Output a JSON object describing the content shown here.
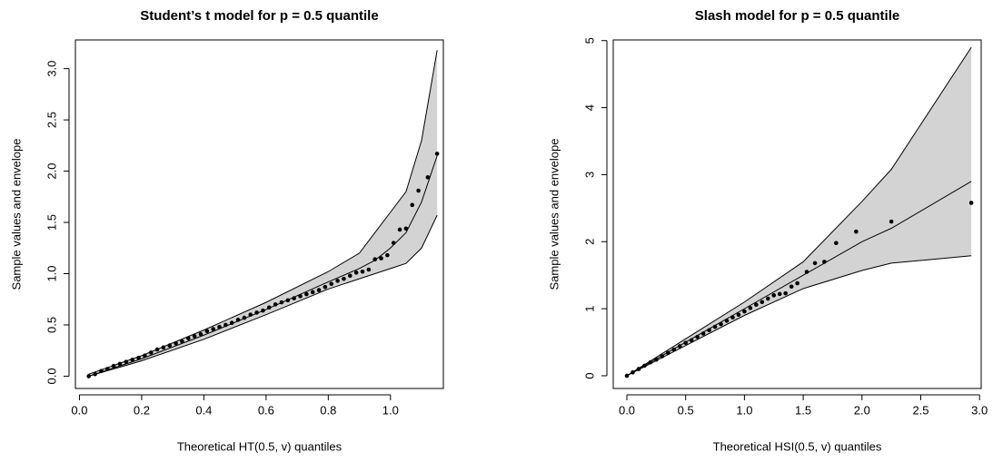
{
  "chart_data": [
    {
      "type": "qq",
      "title": "Student’s t model for p = 0.5 quantile",
      "xlabel": "Theoretical HT(0.5, v) quantiles",
      "ylabel": "Sample values and envelope",
      "xlim": [
        -0.013,
        1.17
      ],
      "ylim": [
        -0.12,
        3.28
      ],
      "xticks": [
        {
          "value": 0,
          "label": "0.0"
        },
        0.2,
        0.4,
        0.6,
        0.8,
        {
          "value": 1,
          "label": "1.0"
        }
      ],
      "yticks": [
        {
          "value": 0,
          "label": "0.0"
        },
        0.5,
        {
          "value": 1,
          "label": "1.0"
        },
        1.5,
        {
          "value": 2,
          "label": "2.0"
        },
        2.5,
        {
          "value": 3,
          "label": "3.0"
        }
      ],
      "band_color": "#d3d3d3",
      "points": {
        "x": [
          0.03,
          0.05,
          0.07,
          0.09,
          0.11,
          0.13,
          0.15,
          0.17,
          0.19,
          0.21,
          0.23,
          0.25,
          0.27,
          0.29,
          0.31,
          0.33,
          0.35,
          0.37,
          0.39,
          0.41,
          0.43,
          0.45,
          0.47,
          0.49,
          0.51,
          0.53,
          0.55,
          0.57,
          0.59,
          0.61,
          0.63,
          0.65,
          0.67,
          0.69,
          0.71,
          0.73,
          0.75,
          0.77,
          0.79,
          0.81,
          0.83,
          0.85,
          0.87,
          0.89,
          0.91,
          0.93,
          0.95,
          0.97,
          0.99,
          1.01,
          1.03,
          1.05,
          1.07,
          1.09,
          1.12,
          1.15
        ],
        "y": [
          0.0,
          0.02,
          0.05,
          0.07,
          0.1,
          0.12,
          0.14,
          0.16,
          0.18,
          0.2,
          0.23,
          0.26,
          0.28,
          0.3,
          0.32,
          0.34,
          0.37,
          0.39,
          0.41,
          0.44,
          0.46,
          0.48,
          0.5,
          0.52,
          0.55,
          0.57,
          0.6,
          0.62,
          0.64,
          0.67,
          0.7,
          0.72,
          0.74,
          0.76,
          0.78,
          0.8,
          0.82,
          0.84,
          0.87,
          0.9,
          0.93,
          0.95,
          0.98,
          1.01,
          1.02,
          1.04,
          1.14,
          1.15,
          1.18,
          1.3,
          1.43,
          1.44,
          1.67,
          1.81,
          1.94,
          2.17
        ]
      },
      "envelope": {
        "x": [
          0.03,
          0.2,
          0.4,
          0.6,
          0.8,
          0.9,
          0.95,
          1.0,
          1.05,
          1.1,
          1.15
        ],
        "lower": [
          0,
          0.15,
          0.36,
          0.6,
          0.85,
          0.95,
          1.0,
          1.05,
          1.1,
          1.25,
          1.57
        ],
        "middle": [
          0,
          0.17,
          0.4,
          0.65,
          0.92,
          1.05,
          1.13,
          1.25,
          1.4,
          1.7,
          2.15
        ],
        "upper": [
          0.02,
          0.2,
          0.45,
          0.72,
          1.02,
          1.2,
          1.4,
          1.6,
          1.8,
          2.3,
          3.18
        ]
      }
    },
    {
      "type": "qq",
      "title": "Slash model for p = 0.5 quantile",
      "xlabel": "Theoretical HSI(0.5, v) quantiles",
      "ylabel": "Sample values and envelope",
      "xlim": [
        -0.116,
        3.014
      ],
      "ylim": [
        -0.19,
        5.01
      ],
      "xticks": [
        {
          "value": 0,
          "label": "0.0"
        },
        0.5,
        {
          "value": 1,
          "label": "1.0"
        },
        1.5,
        {
          "value": 2,
          "label": "2.0"
        },
        2.5,
        {
          "value": 3,
          "label": "3.0"
        }
      ],
      "yticks": [
        0,
        1,
        2,
        3,
        4,
        5
      ],
      "band_color": "#d3d3d3",
      "points": {
        "x": [
          0,
          0.05,
          0.1,
          0.15,
          0.2,
          0.25,
          0.3,
          0.35,
          0.4,
          0.45,
          0.5,
          0.55,
          0.6,
          0.65,
          0.7,
          0.75,
          0.8,
          0.85,
          0.9,
          0.95,
          1.0,
          1.05,
          1.1,
          1.15,
          1.2,
          1.25,
          1.3,
          1.35,
          1.4,
          1.45,
          1.53,
          1.6,
          1.68,
          1.78,
          1.95,
          2.25,
          2.93
        ],
        "y": [
          0,
          0.05,
          0.1,
          0.15,
          0.2,
          0.24,
          0.29,
          0.34,
          0.39,
          0.44,
          0.49,
          0.53,
          0.58,
          0.63,
          0.68,
          0.73,
          0.77,
          0.82,
          0.87,
          0.91,
          0.96,
          1.01,
          1.06,
          1.1,
          1.15,
          1.2,
          1.22,
          1.23,
          1.33,
          1.38,
          1.55,
          1.68,
          1.7,
          1.98,
          2.15,
          2.3,
          2.58
        ]
      },
      "envelope": {
        "x": [
          0,
          0.5,
          1.0,
          1.5,
          2.0,
          2.25,
          2.93
        ],
        "lower": [
          0,
          0.45,
          0.9,
          1.3,
          1.57,
          1.68,
          1.79
        ],
        "middle": [
          0,
          0.5,
          1.0,
          1.5,
          2.0,
          2.2,
          2.9
        ],
        "upper": [
          0,
          0.55,
          1.1,
          1.7,
          2.6,
          3.08,
          4.9
        ]
      }
    }
  ]
}
